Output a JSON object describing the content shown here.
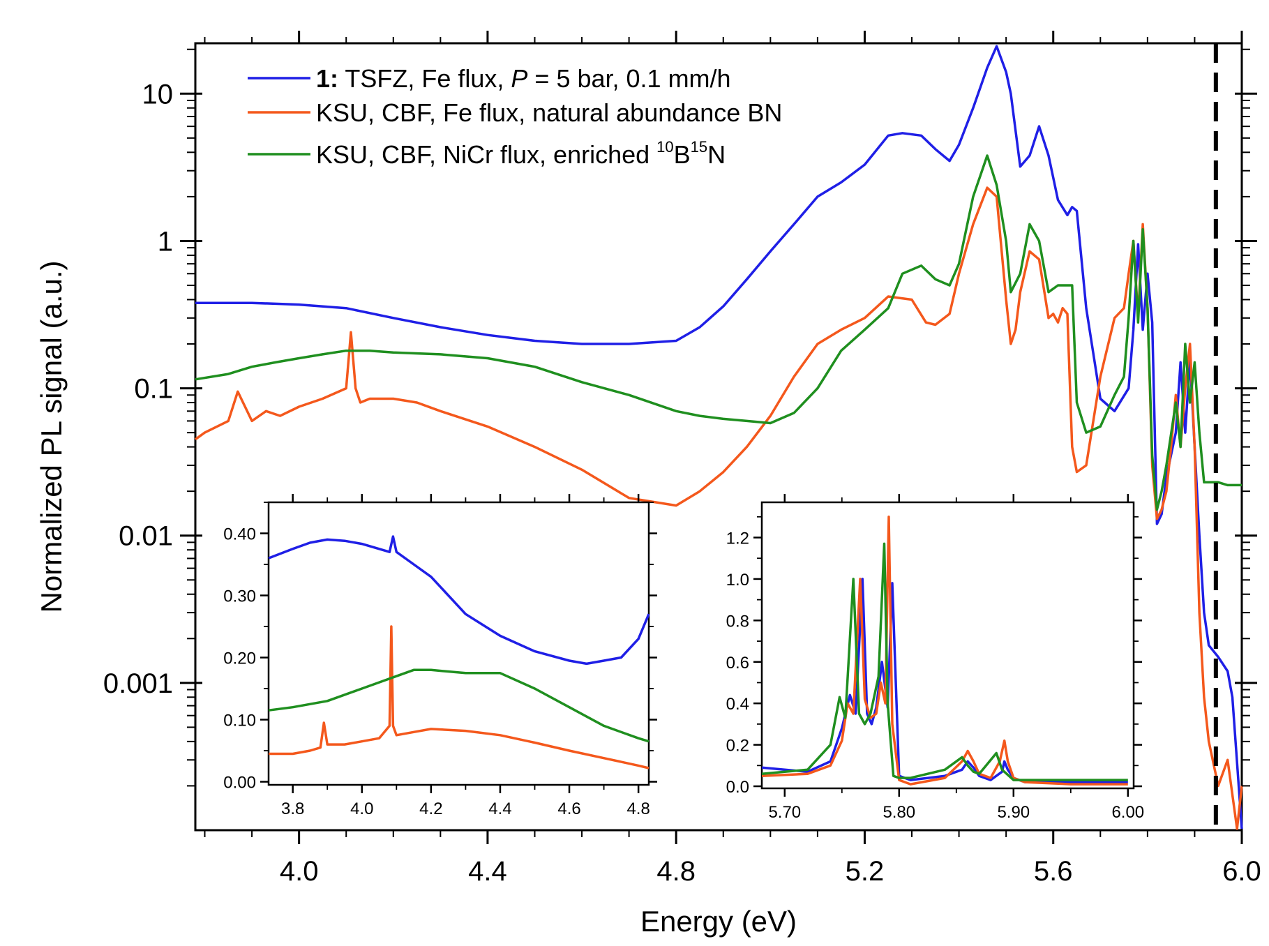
{
  "chart_data": [
    {
      "type": "line",
      "panel": "main",
      "xlabel": "Energy (eV)",
      "ylabel": "Normalized PL signal (a.u.)",
      "yscale": "log",
      "xlim": [
        3.78,
        6.0
      ],
      "ylim": [
        0.0001,
        22
      ],
      "xticks": [
        "4.0",
        "4.4",
        "4.8",
        "5.2",
        "5.6",
        "6.0"
      ],
      "yticks": [
        "10",
        "1",
        "0.1",
        "0.01",
        "0.001"
      ],
      "reference_line": {
        "x": 5.945,
        "style": "dashed"
      },
      "legend": {
        "placement": "top-left",
        "entries": [
          {
            "bold": "1:",
            "text_a": " TSFZ, Fe flux, ",
            "italic": "P",
            "text_b": " = 5 bar, 0.1 mm/h",
            "color": "#1f1fe6"
          },
          {
            "text": "KSU, CBF, Fe flux, natural abundance BN",
            "color": "#f4581c"
          },
          {
            "text_a": "KSU, CBF, NiCr flux, enriched ",
            "sup1": "10",
            "mid": "B",
            "sup2": "15",
            "end": "N",
            "color": "#1f8f1f"
          }
        ]
      },
      "series": [
        {
          "color": "#1f1fe6",
          "x": [
            3.78,
            3.9,
            4.0,
            4.1,
            4.2,
            4.3,
            4.4,
            4.5,
            4.6,
            4.7,
            4.8,
            4.85,
            4.9,
            4.95,
            5.0,
            5.05,
            5.1,
            5.15,
            5.2,
            5.25,
            5.28,
            5.32,
            5.35,
            5.38,
            5.4,
            5.43,
            5.46,
            5.48,
            5.5,
            5.51,
            5.53,
            5.55,
            5.57,
            5.59,
            5.61,
            5.63,
            5.64,
            5.65,
            5.67,
            5.7,
            5.73,
            5.76,
            5.77,
            5.78,
            5.79,
            5.8,
            5.81,
            5.82,
            5.83,
            5.84,
            5.86,
            5.87,
            5.88,
            5.89,
            5.9,
            5.91,
            5.92,
            5.93,
            5.95,
            5.97,
            5.98,
            6.0
          ],
          "y": [
            0.38,
            0.38,
            0.37,
            0.35,
            0.3,
            0.26,
            0.23,
            0.21,
            0.2,
            0.2,
            0.21,
            0.26,
            0.36,
            0.55,
            0.85,
            1.3,
            2.0,
            2.5,
            3.3,
            5.2,
            5.4,
            5.2,
            4.2,
            3.5,
            4.5,
            8,
            15,
            21,
            14,
            10,
            3.2,
            3.8,
            6,
            3.8,
            1.9,
            1.5,
            1.7,
            1.6,
            0.35,
            0.085,
            0.07,
            0.1,
            0.25,
            0.95,
            0.25,
            0.6,
            0.28,
            0.012,
            0.014,
            0.025,
            0.05,
            0.15,
            0.05,
            0.16,
            0.04,
            0.01,
            0.003,
            0.0018,
            0.0015,
            0.0012,
            0.0008,
            0.0001
          ]
        },
        {
          "color": "#f4581c",
          "x": [
            3.78,
            3.8,
            3.85,
            3.87,
            3.9,
            3.93,
            3.96,
            4.0,
            4.05,
            4.1,
            4.11,
            4.12,
            4.13,
            4.15,
            4.2,
            4.25,
            4.3,
            4.4,
            4.5,
            4.6,
            4.7,
            4.8,
            4.85,
            4.9,
            4.95,
            5.0,
            5.05,
            5.1,
            5.15,
            5.2,
            5.25,
            5.3,
            5.33,
            5.35,
            5.38,
            5.4,
            5.43,
            5.46,
            5.48,
            5.5,
            5.51,
            5.52,
            5.53,
            5.55,
            5.57,
            5.59,
            5.6,
            5.61,
            5.62,
            5.63,
            5.64,
            5.65,
            5.67,
            5.7,
            5.73,
            5.75,
            5.76,
            5.77,
            5.78,
            5.79,
            5.8,
            5.81,
            5.82,
            5.83,
            5.84,
            5.85,
            5.86,
            5.87,
            5.88,
            5.89,
            5.9,
            5.91,
            5.92,
            5.93,
            5.95,
            5.97,
            5.99,
            6.0
          ],
          "y": [
            0.045,
            0.05,
            0.06,
            0.095,
            0.06,
            0.07,
            0.065,
            0.075,
            0.085,
            0.1,
            0.24,
            0.1,
            0.08,
            0.085,
            0.085,
            0.08,
            0.07,
            0.055,
            0.04,
            0.028,
            0.018,
            0.016,
            0.02,
            0.027,
            0.04,
            0.065,
            0.12,
            0.2,
            0.25,
            0.3,
            0.42,
            0.4,
            0.28,
            0.27,
            0.32,
            0.6,
            1.3,
            2.3,
            2.0,
            0.4,
            0.2,
            0.25,
            0.45,
            0.85,
            0.75,
            0.3,
            0.32,
            0.28,
            0.35,
            0.32,
            0.04,
            0.027,
            0.03,
            0.12,
            0.3,
            0.35,
            0.6,
            1.0,
            0.3,
            1.3,
            0.35,
            0.03,
            0.013,
            0.015,
            0.02,
            0.04,
            0.09,
            0.04,
            0.1,
            0.2,
            0.04,
            0.003,
            0.0008,
            0.0004,
            0.0002,
            0.0003,
            0.0001,
            0.0002
          ]
        },
        {
          "color": "#1f8f1f",
          "x": [
            3.78,
            3.85,
            3.9,
            3.95,
            4.0,
            4.05,
            4.1,
            4.15,
            4.2,
            4.3,
            4.4,
            4.5,
            4.6,
            4.7,
            4.8,
            4.85,
            4.9,
            4.95,
            5.0,
            5.05,
            5.1,
            5.15,
            5.2,
            5.25,
            5.28,
            5.32,
            5.35,
            5.38,
            5.4,
            5.43,
            5.46,
            5.48,
            5.5,
            5.51,
            5.53,
            5.55,
            5.57,
            5.59,
            5.61,
            5.63,
            5.64,
            5.65,
            5.67,
            5.7,
            5.73,
            5.75,
            5.76,
            5.77,
            5.78,
            5.79,
            5.8,
            5.81,
            5.82,
            5.83,
            5.84,
            5.86,
            5.87,
            5.88,
            5.89,
            5.9,
            5.91,
            5.92,
            5.93,
            5.95,
            5.97,
            6.0
          ],
          "y": [
            0.115,
            0.125,
            0.14,
            0.15,
            0.16,
            0.17,
            0.18,
            0.18,
            0.175,
            0.17,
            0.16,
            0.14,
            0.11,
            0.09,
            0.07,
            0.065,
            0.062,
            0.06,
            0.058,
            0.068,
            0.1,
            0.18,
            0.25,
            0.35,
            0.6,
            0.68,
            0.55,
            0.5,
            0.7,
            2.0,
            3.8,
            2.4,
            1.0,
            0.45,
            0.6,
            1.3,
            1.0,
            0.45,
            0.5,
            0.5,
            0.5,
            0.08,
            0.05,
            0.055,
            0.09,
            0.12,
            0.3,
            1.0,
            0.28,
            1.2,
            0.35,
            0.035,
            0.015,
            0.02,
            0.03,
            0.08,
            0.04,
            0.2,
            0.08,
            0.15,
            0.05,
            0.023,
            0.023,
            0.023,
            0.022,
            0.022
          ]
        }
      ]
    },
    {
      "type": "line",
      "panel": "inset-left",
      "xlim": [
        3.73,
        4.83
      ],
      "ylim": [
        -0.005,
        0.45
      ],
      "xticks": [
        "3.8",
        "4.0",
        "4.2",
        "4.4",
        "4.6",
        "4.8"
      ],
      "yticks": [
        "0.00",
        "0.10",
        "0.20",
        "0.30",
        "0.40"
      ],
      "series": [
        {
          "color": "#1f1fe6",
          "x": [
            3.73,
            3.8,
            3.85,
            3.9,
            3.95,
            4.0,
            4.05,
            4.08,
            4.09,
            4.1,
            4.15,
            4.2,
            4.3,
            4.4,
            4.5,
            4.6,
            4.65,
            4.7,
            4.75,
            4.8,
            4.83
          ],
          "y": [
            0.36,
            0.375,
            0.385,
            0.39,
            0.388,
            0.383,
            0.375,
            0.37,
            0.395,
            0.37,
            0.35,
            0.33,
            0.27,
            0.235,
            0.21,
            0.195,
            0.19,
            0.195,
            0.2,
            0.23,
            0.27
          ]
        },
        {
          "color": "#f4581c",
          "x": [
            3.73,
            3.8,
            3.85,
            3.88,
            3.89,
            3.9,
            3.95,
            4.0,
            4.05,
            4.08,
            4.085,
            4.09,
            4.1,
            4.15,
            4.2,
            4.3,
            4.4,
            4.5,
            4.6,
            4.7,
            4.8,
            4.83
          ],
          "y": [
            0.045,
            0.045,
            0.05,
            0.055,
            0.095,
            0.06,
            0.06,
            0.065,
            0.07,
            0.09,
            0.25,
            0.09,
            0.075,
            0.08,
            0.085,
            0.082,
            0.075,
            0.063,
            0.05,
            0.038,
            0.026,
            0.022
          ]
        },
        {
          "color": "#1f8f1f",
          "x": [
            3.73,
            3.8,
            3.9,
            4.0,
            4.05,
            4.1,
            4.15,
            4.2,
            4.3,
            4.4,
            4.5,
            4.6,
            4.7,
            4.8,
            4.83
          ],
          "y": [
            0.115,
            0.12,
            0.13,
            0.15,
            0.16,
            0.17,
            0.18,
            0.18,
            0.175,
            0.175,
            0.15,
            0.12,
            0.09,
            0.07,
            0.065
          ]
        }
      ]
    },
    {
      "type": "line",
      "panel": "inset-right",
      "xlim": [
        5.68,
        6.005
      ],
      "ylim": [
        -0.01,
        1.37
      ],
      "xticks": [
        "5.70",
        "5.80",
        "5.90",
        "6.00"
      ],
      "yticks": [
        "0.0",
        "0.2",
        "0.4",
        "0.6",
        "0.8",
        "1.0",
        "1.2"
      ],
      "series": [
        {
          "color": "#1f1fe6",
          "x": [
            5.68,
            5.72,
            5.74,
            5.75,
            5.757,
            5.762,
            5.768,
            5.772,
            5.776,
            5.78,
            5.785,
            5.79,
            5.794,
            5.8,
            5.81,
            5.84,
            5.855,
            5.86,
            5.865,
            5.87,
            5.88,
            5.89,
            5.892,
            5.895,
            5.9,
            5.91,
            5.95,
            6.0
          ],
          "y": [
            0.09,
            0.07,
            0.12,
            0.28,
            0.44,
            0.35,
            1.0,
            0.35,
            0.3,
            0.38,
            0.6,
            0.38,
            0.98,
            0.05,
            0.03,
            0.05,
            0.08,
            0.12,
            0.09,
            0.05,
            0.03,
            0.07,
            0.12,
            0.08,
            0.04,
            0.02,
            0.02,
            0.02
          ]
        },
        {
          "color": "#f4581c",
          "x": [
            5.68,
            5.72,
            5.74,
            5.75,
            5.755,
            5.76,
            5.766,
            5.77,
            5.775,
            5.78,
            5.784,
            5.788,
            5.791,
            5.794,
            5.8,
            5.81,
            5.84,
            5.855,
            5.86,
            5.865,
            5.87,
            5.88,
            5.888,
            5.892,
            5.895,
            5.9,
            5.91,
            5.95,
            6.0
          ],
          "y": [
            0.05,
            0.06,
            0.1,
            0.22,
            0.4,
            0.35,
            1.0,
            0.42,
            0.33,
            0.35,
            0.5,
            0.4,
            1.3,
            0.3,
            0.03,
            0.01,
            0.04,
            0.12,
            0.17,
            0.12,
            0.06,
            0.04,
            0.12,
            0.22,
            0.12,
            0.04,
            0.02,
            0.01,
            0.01
          ]
        },
        {
          "color": "#1f8f1f",
          "x": [
            5.68,
            5.72,
            5.74,
            5.748,
            5.753,
            5.76,
            5.765,
            5.77,
            5.775,
            5.782,
            5.787,
            5.79,
            5.795,
            5.8,
            5.81,
            5.84,
            5.855,
            5.86,
            5.865,
            5.87,
            5.885,
            5.89,
            5.9,
            5.91,
            5.95,
            6.0
          ],
          "y": [
            0.06,
            0.08,
            0.2,
            0.43,
            0.33,
            1.0,
            0.35,
            0.3,
            0.35,
            0.53,
            1.17,
            0.4,
            0.05,
            0.04,
            0.04,
            0.08,
            0.14,
            0.1,
            0.07,
            0.06,
            0.16,
            0.08,
            0.03,
            0.03,
            0.03,
            0.03
          ]
        }
      ]
    }
  ]
}
